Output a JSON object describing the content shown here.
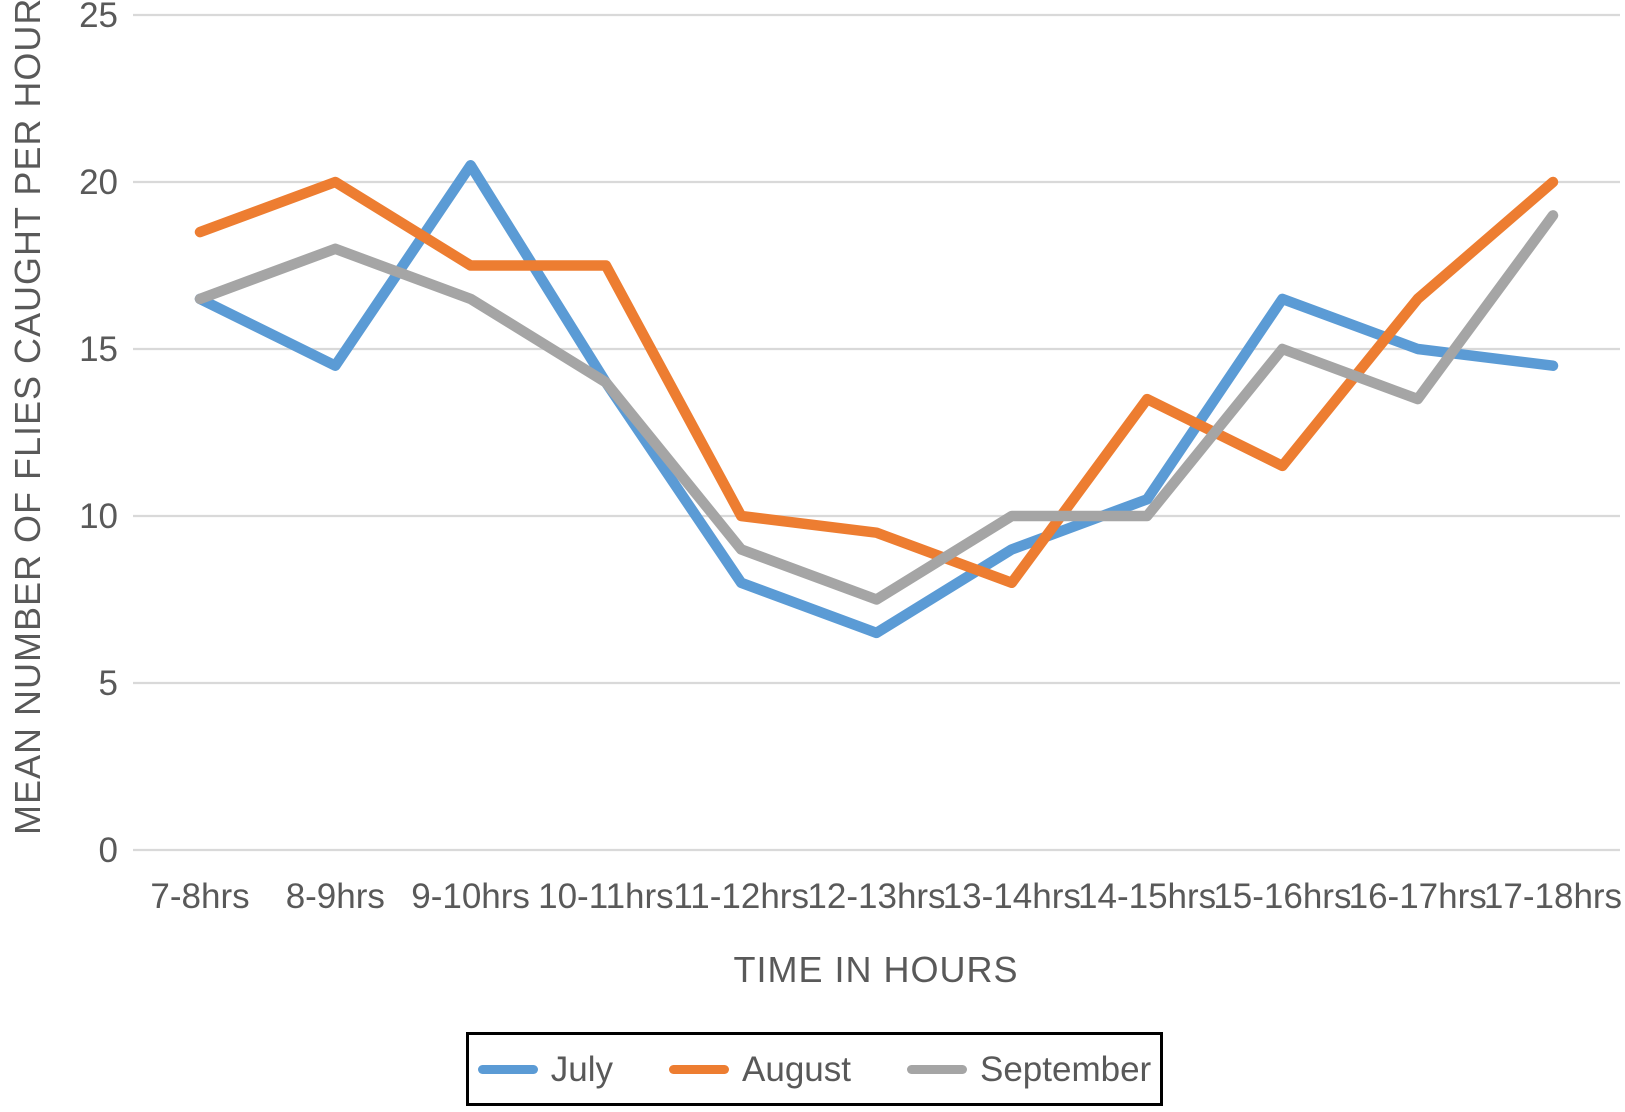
{
  "chart_data": {
    "type": "line",
    "title": "",
    "xlabel": "TIME IN HOURS",
    "ylabel": "MEAN NUMBER OF FLIES CAUGHT PER HOUR",
    "categories": [
      "7-8hrs",
      "8-9hrs",
      "9-10hrs",
      "10-11hrs",
      "11-12hrs",
      "12-13hrs",
      "13-14hrs",
      "14-15hrs",
      "15-16hrs",
      "16-17hrs",
      "17-18hrs"
    ],
    "yticks": [
      0,
      5,
      10,
      15,
      20,
      25
    ],
    "ylim": [
      0,
      25
    ],
    "grid": true,
    "legend_position": "bottom",
    "series": [
      {
        "name": "July",
        "color": "#5B9BD5",
        "values": [
          16.5,
          14.5,
          20.5,
          14,
          8,
          6.5,
          9,
          10.5,
          16.5,
          15,
          14.5
        ]
      },
      {
        "name": "August",
        "color": "#ED7D31",
        "values": [
          18.5,
          20,
          17.5,
          17.5,
          10,
          9.5,
          8,
          13.5,
          11.5,
          16.5,
          20
        ]
      },
      {
        "name": "September",
        "color": "#A5A5A5",
        "values": [
          16.5,
          18,
          16.5,
          14,
          9,
          7.5,
          10,
          10,
          15,
          13.5,
          19
        ]
      }
    ]
  },
  "colors": {
    "text": "#595959",
    "gridline": "#D9D9D9",
    "legend_border": "#000000",
    "background": "#FFFFFF"
  }
}
